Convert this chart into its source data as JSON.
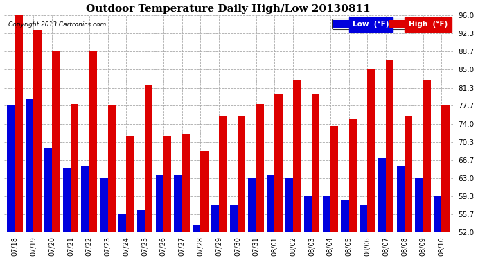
{
  "title": "Outdoor Temperature Daily High/Low 20130811",
  "copyright": "Copyright 2013 Cartronics.com",
  "dates": [
    "07/18",
    "07/19",
    "07/20",
    "07/21",
    "07/22",
    "07/23",
    "07/24",
    "07/25",
    "07/26",
    "07/27",
    "07/28",
    "07/29",
    "07/30",
    "07/31",
    "08/01",
    "08/02",
    "08/03",
    "08/04",
    "08/05",
    "08/06",
    "08/07",
    "08/08",
    "08/09",
    "08/10"
  ],
  "highs": [
    96.0,
    93.0,
    88.7,
    78.0,
    88.7,
    77.7,
    71.5,
    82.0,
    71.5,
    72.0,
    68.5,
    75.5,
    75.5,
    78.0,
    80.0,
    83.0,
    80.0,
    73.5,
    75.0,
    85.0,
    87.0,
    75.5,
    83.0,
    77.7
  ],
  "lows": [
    77.7,
    79.0,
    69.0,
    65.0,
    65.5,
    63.0,
    55.7,
    56.5,
    63.5,
    63.5,
    53.5,
    57.5,
    57.5,
    63.0,
    63.5,
    63.0,
    59.5,
    59.5,
    58.5,
    57.5,
    67.0,
    65.5,
    63.0,
    59.5
  ],
  "ymin": 52.0,
  "ymax": 96.0,
  "yticks": [
    52.0,
    55.7,
    59.3,
    63.0,
    66.7,
    70.3,
    74.0,
    77.7,
    81.3,
    85.0,
    88.7,
    92.3,
    96.0
  ],
  "low_color": "#0000dd",
  "high_color": "#dd0000",
  "bg_color": "#ffffff",
  "grid_color": "#aaaaaa",
  "title_fontsize": 11,
  "bar_width": 0.42,
  "legend_low_label": "Low  (°F)",
  "legend_high_label": "High  (°F)"
}
